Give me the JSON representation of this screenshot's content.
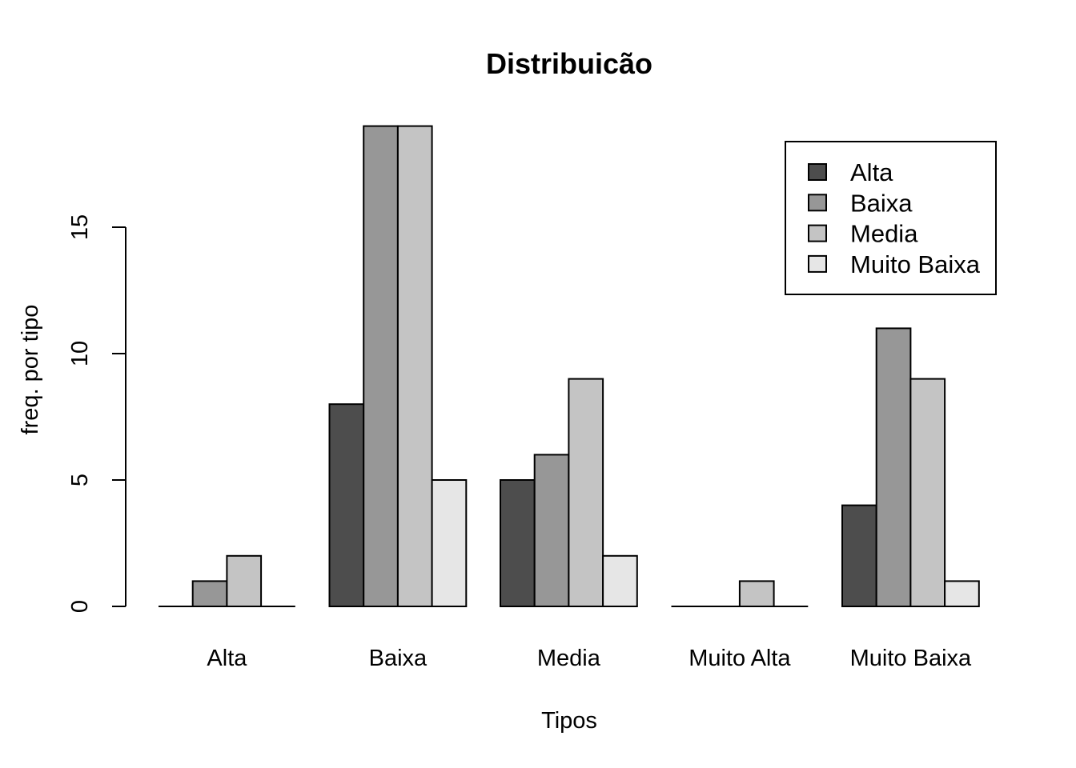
{
  "chart_data": {
    "type": "bar",
    "title": "Distribuicão",
    "xlabel": "Tipos",
    "ylabel": "freq. por tipo",
    "categories": [
      "Alta",
      "Baixa",
      "Media",
      "Muito Alta",
      "Muito Baixa"
    ],
    "series": [
      {
        "name": "Alta",
        "color": "#4d4d4d",
        "values": [
          0,
          8,
          5,
          0,
          4
        ]
      },
      {
        "name": "Baixa",
        "color": "#979797",
        "values": [
          1,
          19,
          6,
          0,
          11
        ]
      },
      {
        "name": "Media",
        "color": "#c4c4c4",
        "values": [
          2,
          19,
          9,
          1,
          9
        ]
      },
      {
        "name": "Muito Baixa",
        "color": "#e6e6e6",
        "values": [
          0,
          5,
          2,
          0,
          1
        ]
      }
    ],
    "yticks": [
      "0",
      "5",
      "10",
      "15"
    ],
    "ylim": [
      0,
      19
    ],
    "grid": false,
    "legend_position": "top-right"
  }
}
